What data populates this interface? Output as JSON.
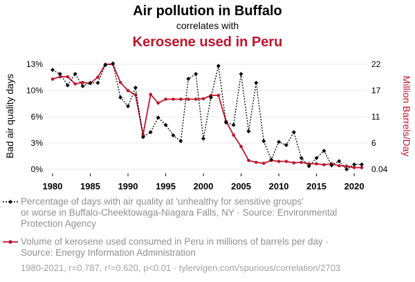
{
  "header": {
    "title": "Air pollution in Buffalo",
    "subtitle": "correlates with",
    "title2": "Kerosene used in Peru"
  },
  "colors": {
    "series1": "#000000",
    "series2": "#c0132b",
    "grid": "#e8e8e8",
    "legend_text": "#8f8f8f"
  },
  "chart_data": {
    "type": "line",
    "x": [
      1980,
      1981,
      1982,
      1983,
      1984,
      1985,
      1986,
      1987,
      1988,
      1989,
      1990,
      1991,
      1992,
      1993,
      1994,
      1995,
      1996,
      1997,
      1998,
      1999,
      2000,
      2001,
      2002,
      2003,
      2004,
      2005,
      2006,
      2007,
      2008,
      2009,
      2010,
      2011,
      2012,
      2013,
      2014,
      2015,
      2016,
      2017,
      2018,
      2019,
      2020,
      2021
    ],
    "series": [
      {
        "name": "Percentage of days with air quality at 'unhealthy for sensitive groups' or worse in Buffalo-Cheektowaga-Niagara Falls, NY · Source: Environmental Protection Agency",
        "axis": "left",
        "color": "#000000",
        "style": "dotted",
        "marker": "diamond",
        "values": [
          12.3,
          11.8,
          10.4,
          11.8,
          10.3,
          10.7,
          10.7,
          12.9,
          13.1,
          8.9,
          7.8,
          10.1,
          4.0,
          4.6,
          6.4,
          5.5,
          4.2,
          3.5,
          11.2,
          11.8,
          3.8,
          8.9,
          12.8,
          5.8,
          5.5,
          11.8,
          4.7,
          10.7,
          3.5,
          1.2,
          3.4,
          3.0,
          4.6,
          1.4,
          0.4,
          1.4,
          2.3,
          0.5,
          1.0,
          0.0,
          0.6,
          0.6
        ]
      },
      {
        "name": "Volume of kerosene used consumed in Peru in millions of barrels per day · Source: Energy Information Administration",
        "axis": "right",
        "color": "#c0132b",
        "style": "solid",
        "marker": "circle",
        "values": [
          18.9,
          19.4,
          19.4,
          17.9,
          18.2,
          18.0,
          19.3,
          22.0,
          22.0,
          18.2,
          16.5,
          15.6,
          7.3,
          15.7,
          13.9,
          14.7,
          14.7,
          14.7,
          14.7,
          14.7,
          14.8,
          15.5,
          15.5,
          10.1,
          7.2,
          4.8,
          1.9,
          1.5,
          1.3,
          1.9,
          1.7,
          1.7,
          1.4,
          1.5,
          1.2,
          1.2,
          1.0,
          1.2,
          0.8,
          0.7,
          0.4,
          0.4
        ]
      }
    ],
    "left_axis": {
      "label": "Bad air quality days",
      "ticks": [
        "0%",
        "3%",
        "6%",
        "10%",
        "13%"
      ],
      "tick_values": [
        0,
        3.25,
        6.5,
        9.75,
        13
      ],
      "range": [
        0,
        13
      ]
    },
    "right_axis": {
      "label": "Million Barrels/Day",
      "ticks": [
        "0.04",
        "6",
        "11",
        "17",
        "22"
      ],
      "tick_values": [
        0.04,
        5.5,
        11,
        16.5,
        22
      ],
      "range": [
        0.04,
        22
      ]
    },
    "x_ticks": [
      1980,
      1985,
      1990,
      1995,
      2000,
      2005,
      2010,
      2015,
      2020
    ],
    "grid": true
  },
  "legend": {
    "item1_lines": [
      "Percentage of days with air quality at 'unhealthy for sensitive groups'",
      "or worse in Buffalo-Cheektowaga-Niagara Falls, NY · Source: Environmental",
      "Protection Agency"
    ],
    "item2_lines": [
      "Volume of kerosene used consumed in Peru in millions of barrels per day ·",
      "Source: Energy Information Administration"
    ]
  },
  "footer": {
    "text": "1980-2021, r=0.787, r²=0.620, p<0.01 · tylervigen.com/spurious/correlation/2703"
  }
}
